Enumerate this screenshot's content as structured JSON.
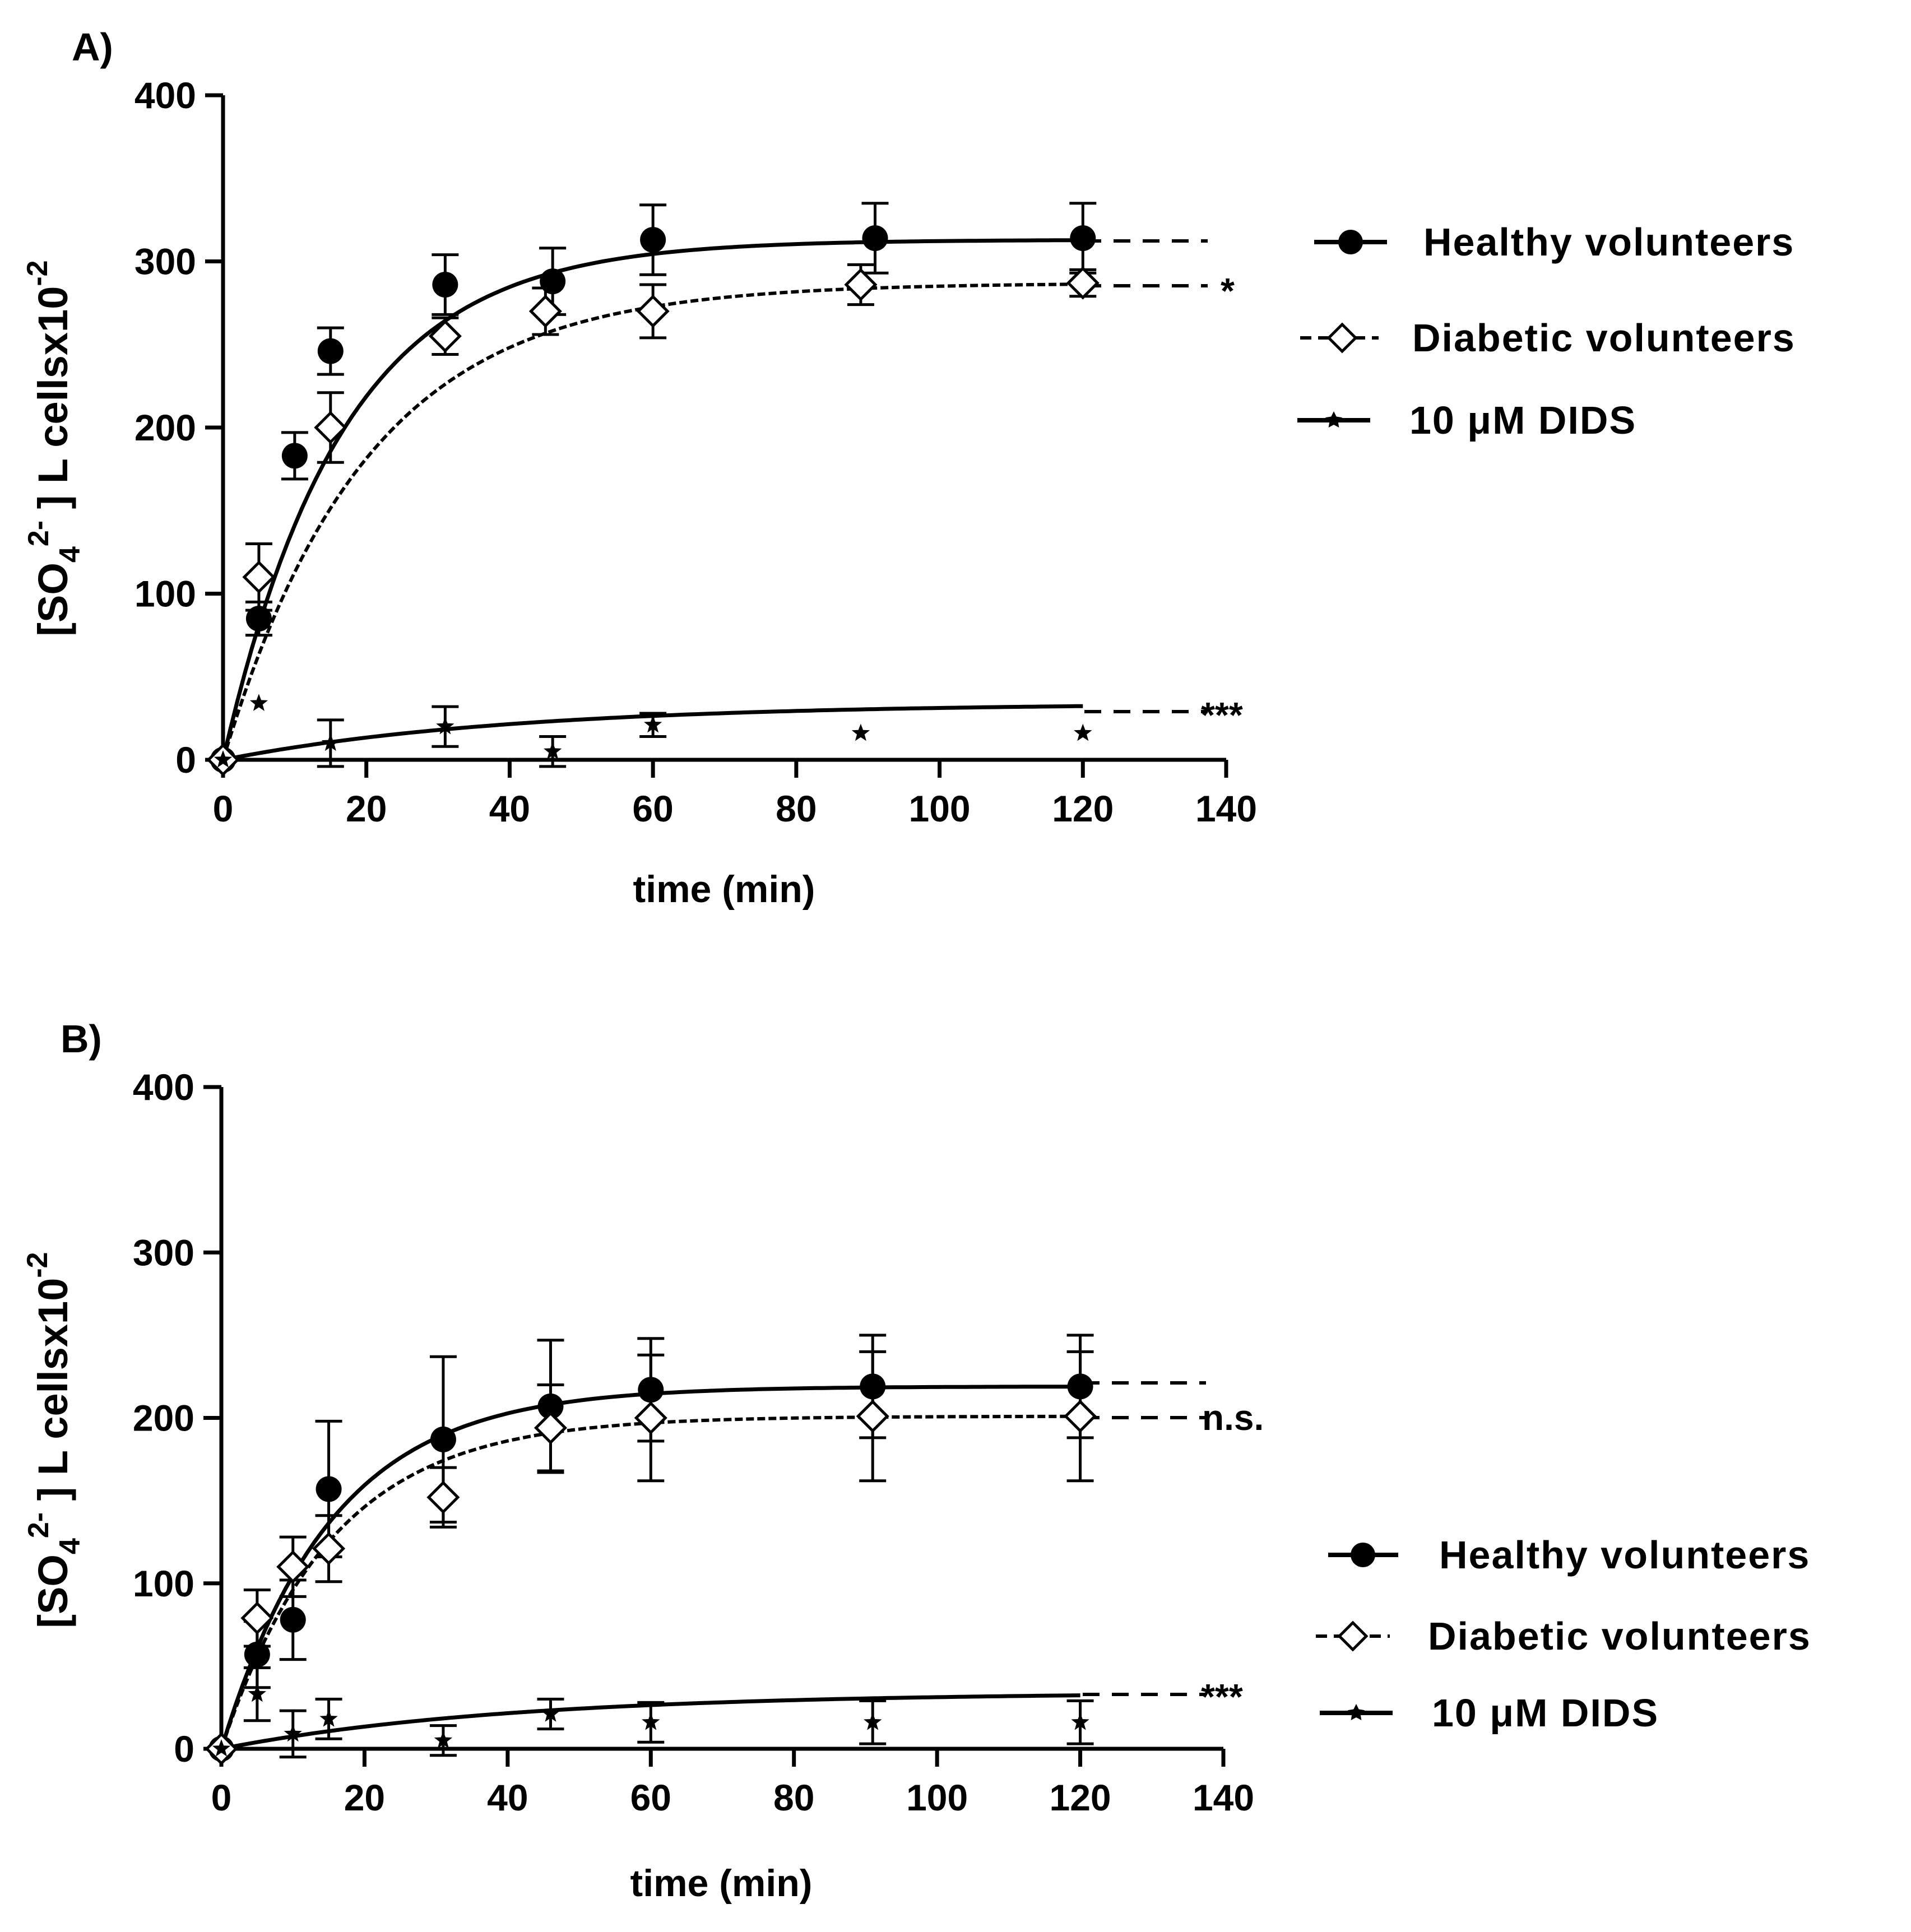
{
  "chart_data": [
    {
      "panel_label": "A)",
      "type": "scatter",
      "xlabel": "time (min)",
      "ylabel": "[SO4 2-] L cellsx10-2",
      "ylabel_parts": {
        "main": "[SO",
        "sub": "4",
        "sup": "2-",
        "rest": " ] L cellsx10",
        "exp": "-2"
      },
      "xlim": [
        0,
        140
      ],
      "ylim": [
        0,
        400
      ],
      "xticks": [
        0,
        20,
        40,
        60,
        80,
        100,
        120,
        140
      ],
      "yticks": [
        0,
        100,
        200,
        300,
        400
      ],
      "legend_position": "right",
      "series": [
        {
          "name": "Healthy volunteers",
          "marker": "filled-circle",
          "line": "solid",
          "points": [
            {
              "x": 0,
              "y": 0,
              "err": 0
            },
            {
              "x": 5,
              "y": 85,
              "err": 10
            },
            {
              "x": 10,
              "y": 183,
              "err": 14
            },
            {
              "x": 15,
              "y": 246,
              "err": 14
            },
            {
              "x": 31,
              "y": 286,
              "err": 18
            },
            {
              "x": 46,
              "y": 288,
              "err": 20
            },
            {
              "x": 60,
              "y": 313,
              "err": 21
            },
            {
              "x": 91,
              "y": 314,
              "err": 21
            },
            {
              "x": 120,
              "y": 314,
              "err": 21
            }
          ],
          "fit": {
            "plateau": 313,
            "k": 0.06
          }
        },
        {
          "name": "Diabetic volunteers",
          "marker": "open-diamond",
          "line": "dashed",
          "points": [
            {
              "x": 0,
              "y": 0,
              "err": 0
            },
            {
              "x": 5,
              "y": 110,
              "err": 20
            },
            {
              "x": 15,
              "y": 200,
              "err": 21
            },
            {
              "x": 31,
              "y": 255,
              "err": 11
            },
            {
              "x": 45,
              "y": 270,
              "err": 14
            },
            {
              "x": 60,
              "y": 270,
              "err": 16
            },
            {
              "x": 89,
              "y": 286,
              "err": 12
            },
            {
              "x": 120,
              "y": 287,
              "err": 8
            }
          ],
          "fit": {
            "plateau": 287,
            "k": 0.05
          }
        },
        {
          "name": "10 μM DIDS",
          "marker": "star",
          "line": "solid",
          "points": [
            {
              "x": 0,
              "y": 0,
              "err": 0
            },
            {
              "x": 5,
              "y": 34,
              "err": 0
            },
            {
              "x": 15,
              "y": 10,
              "err": 14
            },
            {
              "x": 31,
              "y": 20,
              "err": 12
            },
            {
              "x": 46,
              "y": 5,
              "err": 9
            },
            {
              "x": 60,
              "y": 21,
              "err": 7
            },
            {
              "x": 89,
              "y": 16,
              "err": 0
            },
            {
              "x": 120,
              "y": 16,
              "err": 0
            }
          ],
          "fit": {
            "plateau": 34,
            "k": 0.025
          }
        }
      ],
      "annotations": [
        "*",
        "***"
      ]
    },
    {
      "panel_label": "B)",
      "type": "scatter",
      "xlabel": "time (min)",
      "ylabel": "[SO4 2-] L cellsx10-2",
      "ylabel_parts": {
        "main": "[SO",
        "sub": "4",
        "sup": "2-",
        "rest": " ] L cellsx10",
        "exp": "-2"
      },
      "xlim": [
        0,
        140
      ],
      "ylim": [
        0,
        400
      ],
      "xticks": [
        0,
        20,
        40,
        60,
        80,
        100,
        120,
        140
      ],
      "yticks": [
        0,
        100,
        200,
        300,
        400
      ],
      "legend_position": "right",
      "series": [
        {
          "name": "Healthy volunteers",
          "marker": "filled-circle",
          "line": "solid",
          "points": [
            {
              "x": 0,
              "y": 0,
              "err": 0
            },
            {
              "x": 5,
              "y": 57,
              "err": 20
            },
            {
              "x": 10,
              "y": 78,
              "err": 24
            },
            {
              "x": 15,
              "y": 157,
              "err": 41
            },
            {
              "x": 31,
              "y": 187,
              "err": 50
            },
            {
              "x": 46,
              "y": 207,
              "err": 40
            },
            {
              "x": 60,
              "y": 217,
              "err": 31
            },
            {
              "x": 91,
              "y": 219,
              "err": 31
            },
            {
              "x": 120,
              "y": 219,
              "err": 31
            }
          ],
          "fit": {
            "plateau": 219,
            "k": 0.065
          }
        },
        {
          "name": "Diabetic volunteers",
          "marker": "open-diamond",
          "line": "dashed",
          "points": [
            {
              "x": 0,
              "y": 0,
              "err": 0
            },
            {
              "x": 5,
              "y": 79,
              "err": 17
            },
            {
              "x": 10,
              "y": 110,
              "err": 18
            },
            {
              "x": 15,
              "y": 121,
              "err": 20
            },
            {
              "x": 31,
              "y": 152,
              "err": 18
            },
            {
              "x": 46,
              "y": 194,
              "err": 26
            },
            {
              "x": 60,
              "y": 200,
              "err": 38
            },
            {
              "x": 91,
              "y": 201,
              "err": 39
            },
            {
              "x": 120,
              "y": 201,
              "err": 39
            }
          ],
          "fit": {
            "plateau": 201,
            "k": 0.065
          }
        },
        {
          "name": "10 μM DIDS",
          "marker": "star",
          "line": "solid",
          "points": [
            {
              "x": 0,
              "y": 0,
              "err": 0
            },
            {
              "x": 5,
              "y": 33,
              "err": 16
            },
            {
              "x": 10,
              "y": 9,
              "err": 14
            },
            {
              "x": 15,
              "y": 18,
              "err": 12
            },
            {
              "x": 31,
              "y": 5,
              "err": 9
            },
            {
              "x": 46,
              "y": 21,
              "err": 9
            },
            {
              "x": 60,
              "y": 16,
              "err": 12
            },
            {
              "x": 91,
              "y": 16,
              "err": 13
            },
            {
              "x": 120,
              "y": 16,
              "err": 13
            }
          ],
          "fit": {
            "plateau": 34,
            "k": 0.025
          }
        }
      ],
      "annotations": [
        "n.s.",
        "***"
      ]
    }
  ]
}
